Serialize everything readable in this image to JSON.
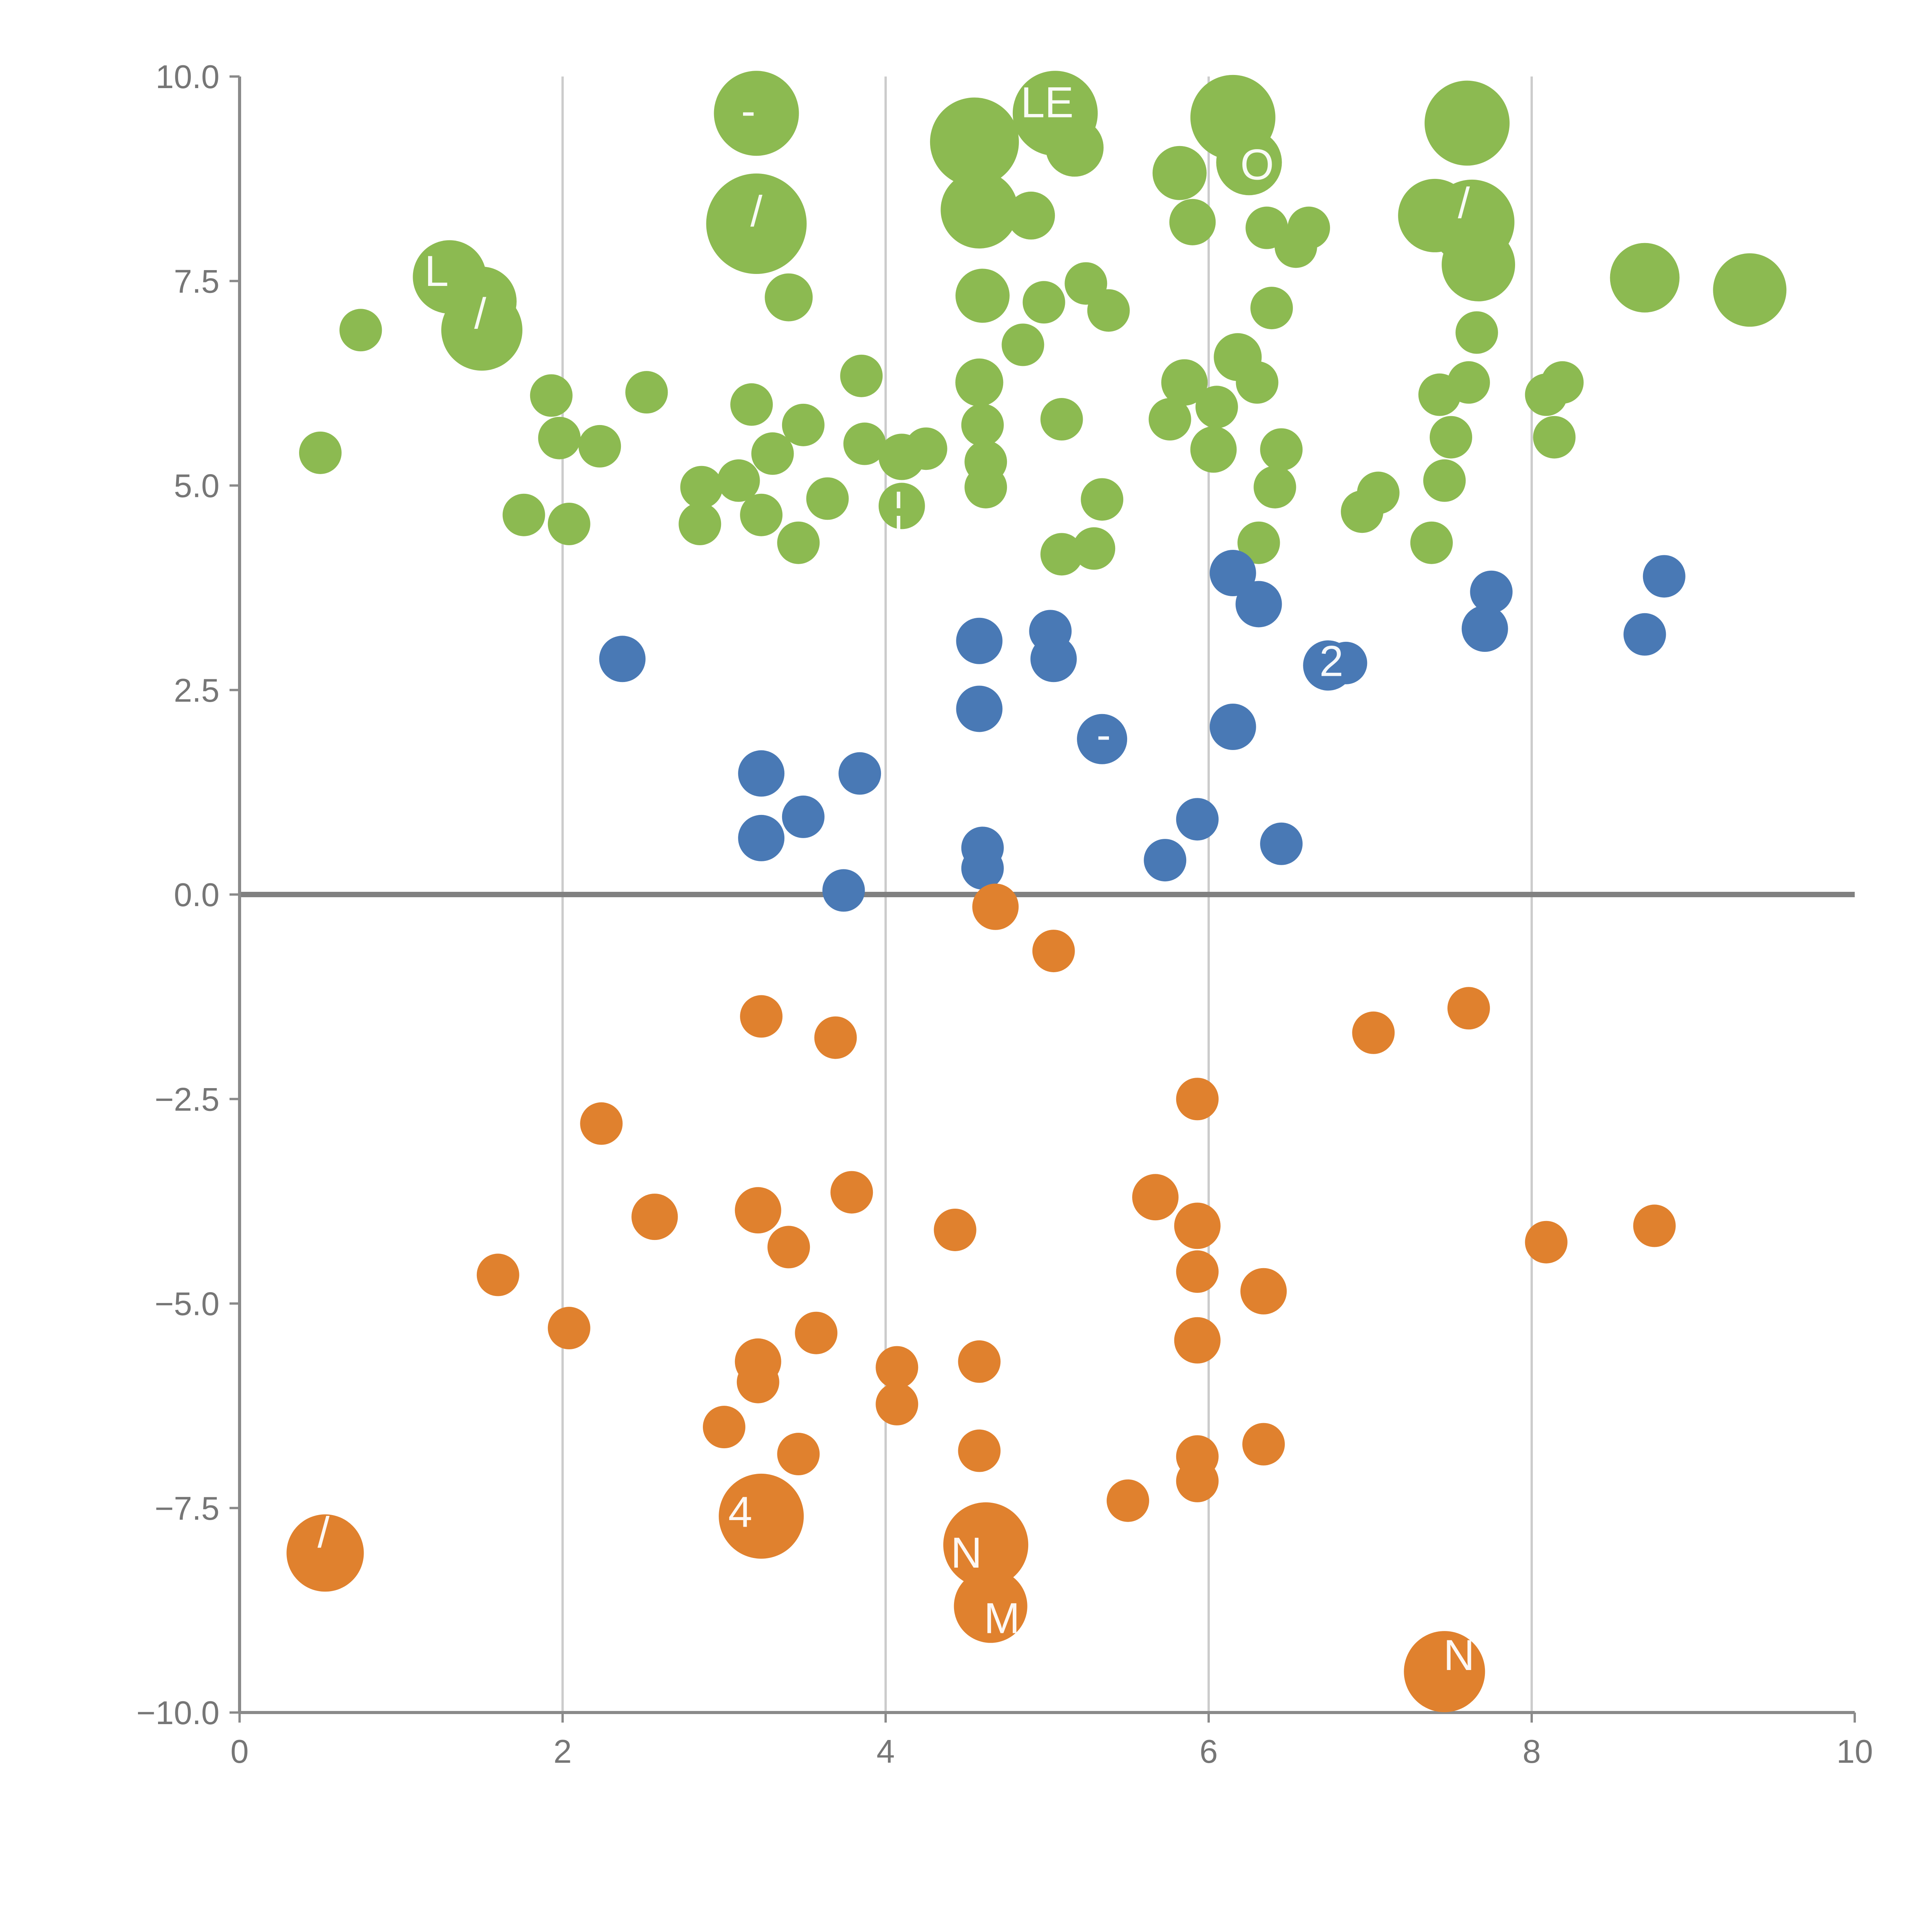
{
  "figure": {
    "title": "",
    "background": "#ffffff"
  },
  "chart_data": {
    "type": "scatter",
    "title": "",
    "xlabel": "",
    "ylabel": "",
    "xlim": [
      0,
      10
    ],
    "ylim": [
      -10,
      10
    ],
    "x_ticks": [
      0,
      2,
      4,
      6,
      8,
      10
    ],
    "y_ticks": [
      -10.0,
      -7.5,
      -5.0,
      -2.5,
      0.0,
      2.5,
      5.0,
      7.5,
      10.0
    ],
    "grid": {
      "vertical_x": [
        2,
        4,
        6,
        8
      ],
      "horizontal": false,
      "zero_line_y": 0,
      "gridline_color": "#cccccc",
      "zero_line_color": "#808080",
      "spine_color": "#8a8a8a"
    },
    "legend": "none",
    "series": [
      {
        "name": "green",
        "color": "#8CBA51",
        "points": [
          [
            0.5,
            5.4,
            55
          ],
          [
            0.75,
            6.9,
            55
          ],
          [
            1.3,
            7.55,
            95
          ],
          [
            1.5,
            7.25,
            90
          ],
          [
            1.5,
            6.9,
            105
          ],
          [
            1.76,
            4.64,
            55
          ],
          [
            1.93,
            6.1,
            55
          ],
          [
            1.98,
            5.58,
            55
          ],
          [
            2.04,
            4.53,
            55
          ],
          [
            2.23,
            5.48,
            55
          ],
          [
            2.52,
            6.14,
            55
          ],
          [
            2.85,
            4.53,
            55
          ],
          [
            2.86,
            4.98,
            55
          ],
          [
            3.09,
            5.06,
            55
          ],
          [
            3.17,
            5.99,
            55
          ],
          [
            3.2,
            9.55,
            110
          ],
          [
            3.2,
            8.2,
            130
          ],
          [
            3.23,
            4.64,
            55
          ],
          [
            3.3,
            5.39,
            55
          ],
          [
            3.4,
            7.3,
            62
          ],
          [
            3.46,
            4.3,
            55
          ],
          [
            3.49,
            5.74,
            55
          ],
          [
            3.64,
            4.84,
            55
          ],
          [
            3.85,
            6.34,
            55
          ],
          [
            3.87,
            5.51,
            55
          ],
          [
            4.1,
            5.35,
            60
          ],
          [
            4.1,
            4.75,
            60
          ],
          [
            4.25,
            5.45,
            55
          ],
          [
            4.55,
            9.2,
            115
          ],
          [
            4.58,
            8.37,
            100
          ],
          [
            4.6,
            7.32,
            70
          ],
          [
            4.58,
            6.26,
            62
          ],
          [
            4.6,
            5.74,
            55
          ],
          [
            4.62,
            5.29,
            55
          ],
          [
            4.62,
            4.98,
            55
          ],
          [
            4.85,
            6.72,
            55
          ],
          [
            4.9,
            8.3,
            62
          ],
          [
            4.98,
            7.24,
            55
          ],
          [
            5.05,
            9.55,
            110
          ],
          [
            5.17,
            9.13,
            75
          ],
          [
            5.09,
            5.81,
            55
          ],
          [
            5.09,
            4.16,
            55
          ],
          [
            5.24,
            7.47,
            55
          ],
          [
            5.29,
            4.23,
            55
          ],
          [
            5.34,
            4.83,
            55
          ],
          [
            5.38,
            7.14,
            55
          ],
          [
            5.82,
            8.82,
            70
          ],
          [
            5.9,
            8.22,
            60
          ],
          [
            5.76,
            5.81,
            55
          ],
          [
            5.85,
            6.26,
            60
          ],
          [
            6.03,
            5.44,
            60
          ],
          [
            6.05,
            5.96,
            55
          ],
          [
            6.15,
            9.5,
            110
          ],
          [
            6.25,
            8.95,
            85
          ],
          [
            6.18,
            6.57,
            62
          ],
          [
            6.3,
            6.26,
            55
          ],
          [
            6.36,
            8.15,
            55
          ],
          [
            6.39,
            7.17,
            55
          ],
          [
            6.31,
            4.3,
            55
          ],
          [
            6.41,
            4.98,
            55
          ],
          [
            6.45,
            5.44,
            55
          ],
          [
            6.54,
            7.92,
            55
          ],
          [
            6.62,
            8.15,
            55
          ],
          [
            6.95,
            4.68,
            55
          ],
          [
            7.05,
            4.91,
            55
          ],
          [
            7.4,
            8.3,
            95
          ],
          [
            7.6,
            9.43,
            110
          ],
          [
            7.63,
            8.22,
            110
          ],
          [
            7.67,
            7.7,
            95
          ],
          [
            7.43,
            6.11,
            55
          ],
          [
            7.38,
            4.3,
            55
          ],
          [
            7.46,
            5.06,
            55
          ],
          [
            7.5,
            5.59,
            55
          ],
          [
            7.61,
            6.26,
            55
          ],
          [
            7.66,
            6.87,
            55
          ],
          [
            8.09,
            6.11,
            55
          ],
          [
            8.14,
            5.59,
            55
          ],
          [
            8.19,
            6.26,
            55
          ],
          [
            8.7,
            7.54,
            90
          ],
          [
            9.35,
            7.39,
            95
          ]
        ]
      },
      {
        "name": "blue",
        "color": "#4979B5",
        "points": [
          [
            2.37,
            2.88,
            60
          ],
          [
            3.23,
            1.48,
            60
          ],
          [
            3.23,
            0.69,
            60
          ],
          [
            3.49,
            0.95,
            55
          ],
          [
            3.74,
            0.05,
            55
          ],
          [
            3.84,
            1.48,
            55
          ],
          [
            4.58,
            3.1,
            60
          ],
          [
            4.58,
            2.27,
            60
          ],
          [
            4.6,
            0.57,
            55
          ],
          [
            4.6,
            0.32,
            55
          ],
          [
            5.02,
            3.22,
            55
          ],
          [
            5.04,
            2.88,
            60
          ],
          [
            5.34,
            1.9,
            65
          ],
          [
            5.73,
            0.42,
            55
          ],
          [
            5.93,
            0.92,
            55
          ],
          [
            6.15,
            3.93,
            60
          ],
          [
            6.31,
            3.55,
            60
          ],
          [
            6.15,
            2.05,
            60
          ],
          [
            6.45,
            0.62,
            55
          ],
          [
            6.74,
            2.8,
            65
          ],
          [
            6.85,
            2.83,
            55
          ],
          [
            7.71,
            3.25,
            60
          ],
          [
            7.75,
            3.7,
            55
          ],
          [
            8.7,
            3.18,
            55
          ],
          [
            8.82,
            3.89,
            55
          ]
        ]
      },
      {
        "name": "orange",
        "color": "#E0812E",
        "points": [
          [
            4.68,
            -0.15,
            60
          ],
          [
            5.04,
            -0.69,
            55
          ],
          [
            3.23,
            -1.49,
            55
          ],
          [
            3.69,
            -1.75,
            55
          ],
          [
            7.02,
            -1.69,
            55
          ],
          [
            7.61,
            -1.39,
            55
          ],
          [
            2.24,
            -2.8,
            55
          ],
          [
            5.93,
            -2.5,
            55
          ],
          [
            2.57,
            -3.94,
            60
          ],
          [
            3.21,
            -3.86,
            60
          ],
          [
            3.4,
            -4.31,
            55
          ],
          [
            3.79,
            -3.64,
            55
          ],
          [
            4.43,
            -4.1,
            55
          ],
          [
            5.67,
            -3.7,
            60
          ],
          [
            5.93,
            -4.05,
            60
          ],
          [
            1.6,
            -4.65,
            55
          ],
          [
            5.93,
            -4.61,
            55
          ],
          [
            6.34,
            -4.85,
            60
          ],
          [
            2.04,
            -5.3,
            55
          ],
          [
            5.93,
            -5.45,
            60
          ],
          [
            3.21,
            -5.71,
            60
          ],
          [
            3.57,
            -5.36,
            55
          ],
          [
            3.21,
            -5.96,
            55
          ],
          [
            4.07,
            -5.78,
            55
          ],
          [
            4.07,
            -6.23,
            55
          ],
          [
            4.58,
            -5.71,
            55
          ],
          [
            3.0,
            -6.51,
            55
          ],
          [
            3.46,
            -6.84,
            55
          ],
          [
            4.58,
            -6.8,
            55
          ],
          [
            5.93,
            -6.87,
            55
          ],
          [
            6.34,
            -6.72,
            55
          ],
          [
            5.93,
            -7.17,
            55
          ],
          [
            5.5,
            -7.41,
            55
          ],
          [
            3.23,
            -7.6,
            110
          ],
          [
            0.53,
            -8.05,
            100
          ],
          [
            4.62,
            -7.95,
            110
          ],
          [
            4.65,
            -8.7,
            95
          ],
          [
            7.46,
            -9.5,
            105
          ],
          [
            8.09,
            -4.25,
            55
          ],
          [
            8.76,
            -4.05,
            55
          ]
        ]
      }
    ],
    "annotations": [
      {
        "text": "L",
        "x": 1.22,
        "y": 7.62,
        "color": "#ffffff"
      },
      {
        "text": "/",
        "x": 1.49,
        "y": 7.1,
        "color": "#ffffff"
      },
      {
        "text": "-",
        "x": 3.15,
        "y": 9.58,
        "color": "#ffffff"
      },
      {
        "text": "/",
        "x": 3.2,
        "y": 8.35,
        "color": "#ffffff"
      },
      {
        "text": "LE",
        "x": 5.0,
        "y": 9.68,
        "color": "#ffffff"
      },
      {
        "text": "O",
        "x": 6.3,
        "y": 8.92,
        "color": "#ffffff"
      },
      {
        "text": "/",
        "x": 7.58,
        "y": 8.45,
        "color": "#ffffff"
      },
      {
        "text": "¦",
        "x": 4.08,
        "y": 4.72,
        "color": "#ffffff"
      },
      {
        "text": "-",
        "x": 5.35,
        "y": 1.95,
        "color": "#ffffff"
      },
      {
        "text": "2",
        "x": 6.76,
        "y": 2.85,
        "color": "#ffffff"
      },
      {
        "text": "4",
        "x": 3.1,
        "y": -7.55,
        "color": "#ffffff"
      },
      {
        "text": "/",
        "x": 0.52,
        "y": -7.8,
        "color": "#ffffff"
      },
      {
        "text": "N",
        "x": 4.5,
        "y": -8.05,
        "color": "#ffffff"
      },
      {
        "text": "M",
        "x": 4.72,
        "y": -8.85,
        "color": "#ffffff"
      },
      {
        "text": "N",
        "x": 7.55,
        "y": -9.3,
        "color": "#ffffff"
      }
    ]
  }
}
